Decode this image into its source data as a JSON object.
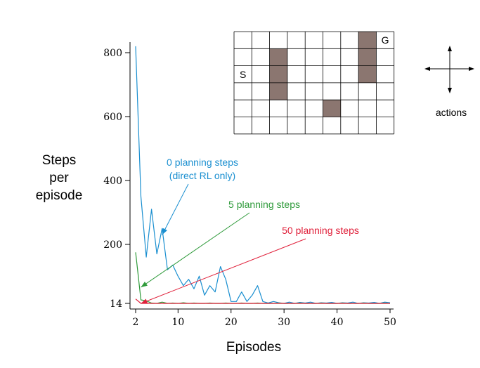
{
  "chart_data": {
    "type": "line",
    "xlabel": "Episodes",
    "ylabel": [
      "Steps",
      "per",
      "episode"
    ],
    "xlim": [
      1,
      50
    ],
    "ylim": [
      0,
      830
    ],
    "xticks": [
      2,
      10,
      20,
      30,
      40,
      50
    ],
    "yticks": [
      14,
      200,
      400,
      600,
      800
    ],
    "grid": false,
    "series": [
      {
        "name": "0 planning steps",
        "name_lines": [
          "0 planning steps",
          "(direct RL only)"
        ],
        "color": "#1a8fd0",
        "x": [
          2,
          3,
          4,
          5,
          6,
          7,
          8,
          9,
          10,
          11,
          12,
          13,
          14,
          15,
          16,
          17,
          18,
          19,
          20,
          21,
          22,
          23,
          24,
          25,
          26,
          27,
          28,
          29,
          30,
          31,
          32,
          33,
          34,
          35,
          36,
          37,
          38,
          39,
          40,
          41,
          42,
          43,
          44,
          45,
          46,
          47,
          48,
          49,
          50
        ],
        "values": [
          820,
          350,
          160,
          310,
          170,
          250,
          120,
          135,
          100,
          70,
          90,
          60,
          100,
          40,
          70,
          50,
          130,
          90,
          20,
          20,
          50,
          20,
          40,
          70,
          20,
          15,
          20,
          16,
          14,
          18,
          14,
          17,
          15,
          18,
          14,
          16,
          15,
          17,
          14,
          16,
          15,
          18,
          14,
          16,
          15,
          17,
          14,
          18,
          16
        ]
      },
      {
        "name": "5 planning steps",
        "name_lines": [
          "5 planning steps"
        ],
        "color": "#2e9a3a",
        "x": [
          2,
          3,
          4,
          5,
          6,
          7,
          8,
          9,
          10,
          11,
          12,
          13,
          14,
          15,
          16,
          17,
          18,
          19,
          20,
          21,
          22,
          23,
          24,
          25,
          26,
          27,
          28,
          29,
          30,
          31,
          32,
          33,
          34,
          35,
          36,
          37,
          38,
          39,
          40,
          41,
          42,
          43,
          44,
          45,
          46,
          47,
          48,
          49,
          50
        ],
        "values": [
          175,
          25,
          22,
          15,
          14,
          18,
          14,
          15,
          14,
          16,
          14,
          15,
          14,
          14,
          15,
          14,
          14,
          15,
          14,
          14,
          15,
          14,
          14,
          15,
          14,
          14,
          14,
          15,
          14,
          14,
          14,
          15,
          14,
          14,
          14,
          15,
          14,
          14,
          14,
          15,
          14,
          14,
          14,
          15,
          14,
          14,
          14,
          15,
          14
        ]
      },
      {
        "name": "50 planning steps",
        "name_lines": [
          "50 planning steps"
        ],
        "color": "#e0203a",
        "x": [
          2,
          3,
          4,
          5,
          6,
          7,
          8,
          9,
          10,
          11,
          12,
          13,
          14,
          15,
          16,
          17,
          18,
          19,
          20,
          21,
          22,
          23,
          24,
          25,
          26,
          27,
          28,
          29,
          30,
          31,
          32,
          33,
          34,
          35,
          36,
          37,
          38,
          39,
          40,
          41,
          42,
          43,
          44,
          45,
          46,
          47,
          48,
          49,
          50
        ],
        "values": [
          28,
          14,
          14,
          14,
          14,
          14,
          14,
          14,
          14,
          14,
          14,
          14,
          14,
          14,
          14,
          14,
          14,
          14,
          14,
          14,
          14,
          14,
          14,
          14,
          14,
          14,
          14,
          14,
          14,
          14,
          14,
          14,
          14,
          14,
          14,
          14,
          14,
          14,
          14,
          14,
          14,
          14,
          14,
          14,
          14,
          14,
          14,
          14,
          14
        ]
      }
    ],
    "annotations": [
      {
        "series": 0,
        "points_to_episode": 7,
        "points_to_value": 230
      },
      {
        "series": 1,
        "points_to_episode": 3,
        "points_to_value": 65
      },
      {
        "series": 2,
        "points_to_episode": 3,
        "points_to_value": 14
      }
    ]
  },
  "gridworld": {
    "cols": 9,
    "rows": 6,
    "start_label": "S",
    "goal_label": "G",
    "start_cell": [
      0,
      2
    ],
    "goal_cell": [
      8,
      0
    ],
    "obstacles": [
      [
        2,
        1
      ],
      [
        2,
        2
      ],
      [
        2,
        3
      ],
      [
        5,
        4
      ],
      [
        7,
        0
      ],
      [
        7,
        1
      ],
      [
        7,
        2
      ]
    ],
    "obstacle_color": "#8b7670"
  },
  "actions_label": "actions"
}
